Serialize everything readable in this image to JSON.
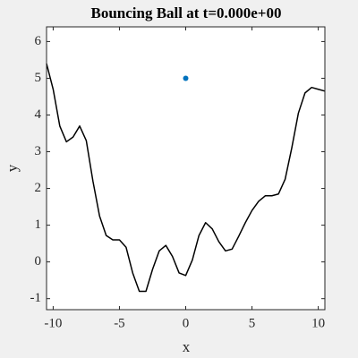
{
  "chart_data": {
    "type": "line",
    "title": "Bouncing Ball at t=0.000e+00",
    "xlabel": "x",
    "ylabel": "y",
    "xlim": [
      -10.5,
      10.5
    ],
    "ylim": [
      -1.3,
      6.4
    ],
    "xticks": [
      -10,
      -5,
      0,
      5,
      10
    ],
    "yticks": [
      -1,
      0,
      1,
      2,
      3,
      4,
      5,
      6
    ],
    "box": true,
    "series": [
      {
        "color": "#000000",
        "style": "line",
        "x": [
          -10.5,
          -10,
          -9.5,
          -9,
          -8.5,
          -8,
          -7.5,
          -7,
          -6.5,
          -6,
          -5.5,
          -5,
          -4.5,
          -4,
          -3.5,
          -3,
          -2.5,
          -2,
          -1.5,
          -1,
          -0.5,
          0,
          0.5,
          1,
          1.5,
          2,
          2.5,
          3,
          3.5,
          4,
          4.5,
          5,
          5.5,
          6,
          6.5,
          7,
          7.5,
          8,
          8.5,
          9,
          9.5,
          10,
          10.5
        ],
        "values": [
          5.4,
          4.7,
          3.7,
          3.27,
          3.4,
          3.7,
          3.3,
          2.2,
          1.25,
          0.72,
          0.6,
          0.6,
          0.4,
          -0.3,
          -0.8,
          -0.8,
          -0.2,
          0.3,
          0.45,
          0.15,
          -0.3,
          -0.37,
          0.05,
          0.72,
          1.07,
          0.9,
          0.55,
          0.3,
          0.35,
          0.7,
          1.07,
          1.4,
          1.65,
          1.8,
          1.8,
          1.85,
          2.25,
          3.1,
          4.05,
          4.6,
          4.75,
          4.7,
          4.65
        ]
      },
      {
        "color": "#0072bd",
        "style": "marker",
        "x": [
          0
        ],
        "values": [
          5
        ]
      }
    ]
  }
}
